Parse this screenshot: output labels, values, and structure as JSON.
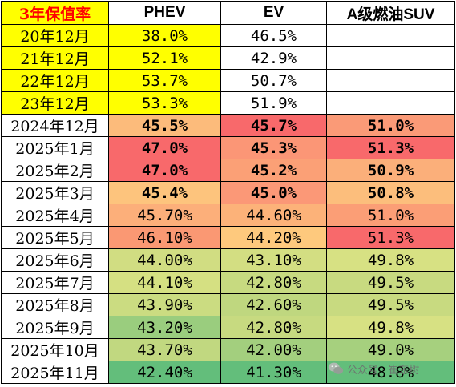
{
  "chart_data": {
    "type": "table",
    "title": "3年保值率",
    "columns": [
      "3年保值率",
      "PHEV",
      "EV",
      "A级燃油SUV"
    ],
    "rows": [
      {
        "label": "20年12月",
        "cells": [
          "38.0%",
          "46.5%",
          ""
        ],
        "colors": [
          "#ffff00",
          "#ffff00",
          "#ffffff",
          "#ffffff"
        ],
        "bold": false
      },
      {
        "label": "21年12月",
        "cells": [
          "52.1%",
          "42.9%",
          ""
        ],
        "colors": [
          "#ffff00",
          "#ffff00",
          "#ffffff",
          "#ffffff"
        ],
        "bold": false
      },
      {
        "label": "22年12月",
        "cells": [
          "53.7%",
          "50.7%",
          ""
        ],
        "colors": [
          "#ffff00",
          "#ffff00",
          "#ffffff",
          "#ffffff"
        ],
        "bold": false
      },
      {
        "label": "23年12月",
        "cells": [
          "53.3%",
          "51.9%",
          ""
        ],
        "colors": [
          "#ffff00",
          "#ffff00",
          "#ffffff",
          "#ffffff"
        ],
        "bold": false
      },
      {
        "label": "2024年12月",
        "cells": [
          "45.5%",
          "45.7%",
          "51.0%"
        ],
        "colors": [
          "#ffffff",
          "#fcbb7b",
          "#f8696b",
          "#fa9a77"
        ],
        "bold": true
      },
      {
        "label": "2025年1月",
        "cells": [
          "47.0%",
          "45.3%",
          "51.3%"
        ],
        "colors": [
          "#ffffff",
          "#f8696b",
          "#fb9676",
          "#f8696b"
        ],
        "bold": true
      },
      {
        "label": "2025年2月",
        "cells": [
          "47.0%",
          "45.2%",
          "50.9%"
        ],
        "colors": [
          "#ffffff",
          "#f8696b",
          "#fba076",
          "#fbaf7a"
        ],
        "bold": true
      },
      {
        "label": "2025年3月",
        "cells": [
          "45.4%",
          "45.0%",
          "50.8%"
        ],
        "colors": [
          "#ffffff",
          "#fdc47d",
          "#fb9877",
          "#fcbe7c"
        ],
        "bold": true
      },
      {
        "label": "2025年4月",
        "cells": [
          "45.70%",
          "44.60%",
          "51.0%"
        ],
        "colors": [
          "#ffffff",
          "#fcaf7a",
          "#fcb279",
          "#fb9e76"
        ],
        "bold": false
      },
      {
        "label": "2025年5月",
        "cells": [
          "46.10%",
          "44.20%",
          "51.3%"
        ],
        "colors": [
          "#ffffff",
          "#fa9873",
          "#fec97d",
          "#f8696b"
        ],
        "bold": false
      },
      {
        "label": "2025年6月",
        "cells": [
          "44.00%",
          "43.10%",
          "49.8%"
        ],
        "colors": [
          "#ffffff",
          "#d1dd82",
          "#d3de82",
          "#d7e183"
        ],
        "bold": false
      },
      {
        "label": "2025年7月",
        "cells": [
          "44.10%",
          "42.80%",
          "49.5%"
        ],
        "colors": [
          "#ffffff",
          "#d5e082",
          "#c7da80",
          "#c8da80"
        ],
        "bold": false
      },
      {
        "label": "2025年8月",
        "cells": [
          "43.90%",
          "42.60%",
          "49.5%"
        ],
        "colors": [
          "#ffffff",
          "#cbdc81",
          "#bfd77f",
          "#c8da80"
        ],
        "bold": false
      },
      {
        "label": "2025年9月",
        "cells": [
          "43.20%",
          "42.80%",
          "49.8%"
        ],
        "colors": [
          "#ffffff",
          "#9acd7e",
          "#c7da80",
          "#d7e183"
        ],
        "bold": false
      },
      {
        "label": "2025年10月",
        "cells": [
          "43.70%",
          "42.00%",
          "49.0%"
        ],
        "colors": [
          "#ffffff",
          "#c1d880",
          "#a3cf7e",
          "#a6d07e"
        ],
        "bold": false
      },
      {
        "label": "2025年11月",
        "cells": [
          "42.40%",
          "41.30%",
          "48.8%"
        ],
        "colors": [
          "#ffffff",
          "#63be7b",
          "#63be7b",
          "#63be7b"
        ],
        "bold": false
      }
    ]
  },
  "header_colors": {
    "corner_bg": "#ffff00",
    "corner_text": "#ff0000",
    "header_bg": "#ffffff"
  },
  "watermark": {
    "text": "公众号 · 崔东树"
  }
}
